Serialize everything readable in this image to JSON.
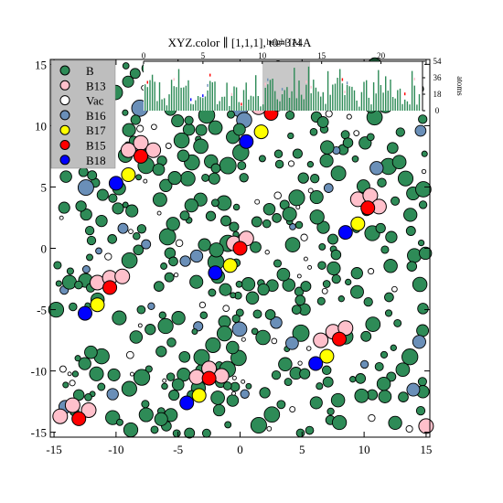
{
  "chart_data": {
    "type": "scatter",
    "title": "XYZ.color ∥ [1,1,1], t0=314A",
    "xlim": [
      -15.3,
      15.3
    ],
    "ylim": [
      -15.4,
      15.4
    ],
    "x_ticks": [
      -15,
      -10,
      -5,
      0,
      5,
      10,
      15
    ],
    "y_ticks": [
      15,
      10,
      5,
      0,
      -5,
      -10,
      -15
    ],
    "legend": {
      "placement": "top-left",
      "entries": [
        {
          "label": "B",
          "color": "#2e8b57"
        },
        {
          "label": "B13",
          "color": "#ffc0cb"
        },
        {
          "label": "Vac",
          "color": "#ffffff"
        },
        {
          "label": "B16",
          "color": "#6a8fb8"
        },
        {
          "label": "B17",
          "color": "#ffff00"
        },
        {
          "label": "B15",
          "color": "#ff0000"
        },
        {
          "label": "B18",
          "color": "#0000ff"
        }
      ]
    },
    "defect_points": [
      {
        "species": "B15",
        "x": 2.5,
        "y": 11
      },
      {
        "species": "B13",
        "x": 1.5,
        "y": 11.5
      },
      {
        "species": "B13",
        "x": 3,
        "y": 11.8
      },
      {
        "species": "B17",
        "x": 1.7,
        "y": 9.5
      },
      {
        "species": "B18",
        "x": 0.5,
        "y": 8.7
      },
      {
        "species": "B13",
        "x": -9,
        "y": 8
      },
      {
        "species": "B13",
        "x": -8,
        "y": 8.6
      },
      {
        "species": "B13",
        "x": -7,
        "y": 8
      },
      {
        "species": "B15",
        "x": -8,
        "y": 7.5
      },
      {
        "species": "B17",
        "x": -9,
        "y": 6
      },
      {
        "species": "B18",
        "x": -10,
        "y": 5.3
      },
      {
        "species": "B13",
        "x": 9.5,
        "y": 4
      },
      {
        "species": "B13",
        "x": 10.5,
        "y": 4.3
      },
      {
        "species": "B13",
        "x": 11.2,
        "y": 3.4
      },
      {
        "species": "B15",
        "x": 10.3,
        "y": 3.3
      },
      {
        "species": "B17",
        "x": 9.5,
        "y": 2
      },
      {
        "species": "B18",
        "x": 8.5,
        "y": 1.3
      },
      {
        "species": "B13",
        "x": -0.5,
        "y": 0.4
      },
      {
        "species": "B13",
        "x": 0.5,
        "y": 0.8
      },
      {
        "species": "B15",
        "x": 0,
        "y": 0
      },
      {
        "species": "B17",
        "x": -0.8,
        "y": -1.4
      },
      {
        "species": "B18",
        "x": -2,
        "y": -2
      },
      {
        "species": "B13",
        "x": -11.5,
        "y": -2.8
      },
      {
        "species": "B13",
        "x": -10.5,
        "y": -2.4
      },
      {
        "species": "B13",
        "x": -9.5,
        "y": -2.3
      },
      {
        "species": "B15",
        "x": -10.5,
        "y": -3.2
      },
      {
        "species": "B17",
        "x": -11.5,
        "y": -4.6
      },
      {
        "species": "B18",
        "x": -12.5,
        "y": -5.3
      },
      {
        "species": "B13",
        "x": 6.5,
        "y": -7.5
      },
      {
        "species": "B13",
        "x": 7.5,
        "y": -6.8
      },
      {
        "species": "B13",
        "x": 8.5,
        "y": -6.5
      },
      {
        "species": "B15",
        "x": 8,
        "y": -7.4
      },
      {
        "species": "B17",
        "x": 7,
        "y": -8.8
      },
      {
        "species": "B18",
        "x": 6.1,
        "y": -9.4
      },
      {
        "species": "B13",
        "x": -3.5,
        "y": -10.5
      },
      {
        "species": "B13",
        "x": -2.5,
        "y": -9.8
      },
      {
        "species": "B13",
        "x": -1.5,
        "y": -10.4
      },
      {
        "species": "B15",
        "x": -2.5,
        "y": -10.6
      },
      {
        "species": "B17",
        "x": -3.3,
        "y": -12
      },
      {
        "species": "B18",
        "x": -4.3,
        "y": -12.6
      },
      {
        "species": "B13",
        "x": -14.5,
        "y": -13.7
      },
      {
        "species": "B13",
        "x": -13.5,
        "y": -12.8
      },
      {
        "species": "B13",
        "x": -12.2,
        "y": -13.2
      },
      {
        "species": "B15",
        "x": -13,
        "y": -13.9
      },
      {
        "species": "B13",
        "x": 15,
        "y": -14.5
      }
    ],
    "inset": {
      "label": "height [A]",
      "right_label": "atoms",
      "x_ticks": [
        0,
        5,
        10,
        15,
        20
      ],
      "y_ticks": [
        54,
        36,
        18,
        0
      ]
    }
  }
}
